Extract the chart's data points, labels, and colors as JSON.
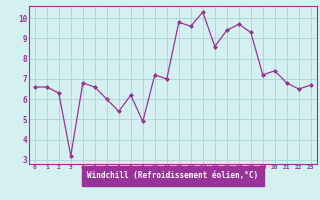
{
  "x": [
    0,
    1,
    2,
    3,
    4,
    5,
    6,
    7,
    8,
    9,
    10,
    11,
    12,
    13,
    14,
    15,
    16,
    17,
    18,
    19,
    20,
    21,
    22,
    23
  ],
  "y": [
    6.6,
    6.6,
    6.3,
    3.2,
    6.8,
    6.6,
    6.0,
    5.4,
    6.2,
    4.9,
    7.2,
    7.0,
    9.8,
    9.6,
    10.3,
    8.6,
    9.4,
    9.7,
    9.3,
    7.2,
    7.4,
    6.8,
    6.5,
    6.7
  ],
  "line_color": "#993399",
  "marker_color": "#993399",
  "bg_color": "#d4f0f0",
  "grid_color": "#b0d8d8",
  "xlabel": "Windchill (Refroidissement éolien,°C)",
  "xlim": [
    -0.5,
    23.5
  ],
  "ylim": [
    2.8,
    10.6
  ],
  "yticks": [
    3,
    4,
    5,
    6,
    7,
    8,
    9,
    10
  ],
  "xticks": [
    0,
    1,
    2,
    3,
    4,
    5,
    6,
    7,
    8,
    9,
    10,
    11,
    12,
    13,
    14,
    15,
    16,
    17,
    18,
    19,
    20,
    21,
    22,
    23
  ],
  "xlabel_color": "#ffffff",
  "xlabel_bg": "#993399",
  "tick_label_color": "#993399",
  "spine_color": "#993399"
}
